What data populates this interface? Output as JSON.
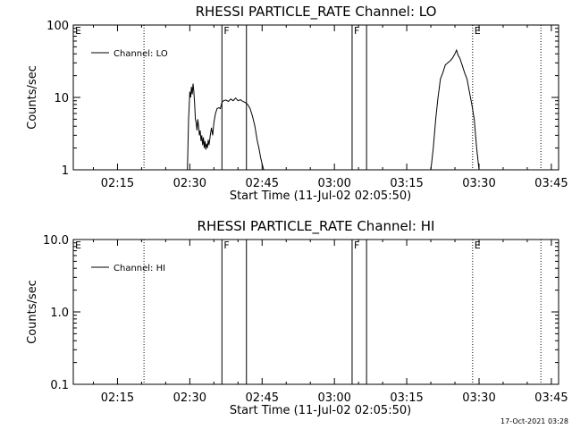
{
  "footer": {
    "timestamp": "17-Oct-2021 03:28"
  },
  "chart_data": [
    {
      "type": "line",
      "title": "RHESSI PARTICLE_RATE Channel: LO",
      "xlabel": "Start Time (11-Jul-02 02:05:50)",
      "ylabel": "Counts/sec",
      "yscale": "log",
      "ylim": [
        1,
        100
      ],
      "xlim": [
        "02:05:50",
        "03:46:30"
      ],
      "xticks": [
        "02:15",
        "02:30",
        "02:45",
        "03:00",
        "03:15",
        "03:30",
        "03:45"
      ],
      "yticks": [
        "1",
        "10",
        "100"
      ],
      "legend": {
        "entry": "Channel: LO",
        "placement": "top-left"
      },
      "markers": [
        {
          "label": "E",
          "time": "02:05:50",
          "style": "dotted"
        },
        {
          "label": "",
          "time": "02:20:30",
          "style": "dotted"
        },
        {
          "label": "F",
          "time": "02:36:40",
          "style": "solid"
        },
        {
          "label": "",
          "time": "02:41:45",
          "style": "solid"
        },
        {
          "label": "F",
          "time": "03:03:40",
          "style": "solid"
        },
        {
          "label": "",
          "time": "03:06:40",
          "style": "solid"
        },
        {
          "label": "E",
          "time": "03:28:40",
          "style": "dotted"
        },
        {
          "label": "",
          "time": "03:42:50",
          "style": "dotted"
        }
      ],
      "series": [
        {
          "segments": [
            {
              "x": [
                "02:29:30",
                "02:29:45",
                "02:30:00",
                "02:30:10",
                "02:30:20",
                "02:30:30",
                "02:30:40",
                "02:30:50",
                "02:31:00",
                "02:31:10",
                "02:31:20",
                "02:31:30",
                "02:31:40",
                "02:31:50",
                "02:32:00",
                "02:32:10",
                "02:32:20",
                "02:32:30",
                "02:32:40",
                "02:32:50",
                "02:33:00",
                "02:33:10",
                "02:33:20",
                "02:33:30",
                "02:33:40",
                "02:33:50",
                "02:34:00",
                "02:34:15",
                "02:34:30",
                "02:34:45",
                "02:35:00",
                "02:35:20",
                "02:35:40",
                "02:36:00",
                "02:36:20",
                "02:36:40",
                "02:37:00",
                "02:37:30",
                "02:38:00",
                "02:38:30",
                "02:39:00",
                "02:39:30",
                "02:40:00",
                "02:40:30",
                "02:41:00",
                "02:41:30",
                "02:42:00",
                "02:42:30",
                "02:43:00",
                "02:43:30",
                "02:44:00",
                "02:44:20",
                "02:44:40",
                "02:45:00",
                "02:45:20",
                "02:45:30"
              ],
              "y": [
                1.0,
                5.0,
                12.0,
                10.0,
                14.0,
                11.0,
                15.5,
                12.0,
                8.0,
                5.0,
                4.5,
                3.5,
                5.0,
                4.0,
                3.0,
                3.5,
                2.5,
                3.0,
                2.2,
                2.8,
                2.0,
                2.5,
                1.9,
                2.3,
                2.0,
                2.6,
                2.2,
                3.0,
                3.8,
                3.0,
                4.5,
                6.0,
                7.0,
                7.2,
                7.0,
                8.5,
                9.0,
                9.2,
                8.8,
                9.5,
                9.0,
                9.8,
                9.0,
                9.3,
                8.8,
                8.5,
                8.0,
                7.0,
                5.5,
                4.0,
                2.5,
                2.0,
                1.5,
                1.2,
                1.0,
                0.8
              ]
            },
            {
              "x": [
                "03:20:00",
                "03:20:30",
                "03:21:00",
                "03:21:30",
                "03:22:00",
                "03:22:30",
                "03:23:00",
                "03:23:30",
                "03:24:00",
                "03:24:30",
                "03:25:00",
                "03:25:20",
                "03:25:40",
                "03:26:00",
                "03:26:30",
                "03:27:00",
                "03:27:30",
                "03:28:00",
                "03:28:30",
                "03:29:00",
                "03:29:30",
                "03:30:00"
              ],
              "y": [
                1.0,
                2.0,
                5.0,
                10.0,
                18.0,
                22.0,
                28.0,
                30.0,
                32.0,
                35.0,
                40.0,
                45.0,
                38.0,
                35.0,
                28.0,
                22.0,
                18.0,
                12.0,
                8.0,
                5.0,
                2.0,
                1.0
              ]
            }
          ]
        }
      ]
    },
    {
      "type": "line",
      "title": "RHESSI PARTICLE_RATE Channel: HI",
      "xlabel": "Start Time (11-Jul-02 02:05:50)",
      "ylabel": "Counts/sec",
      "yscale": "log",
      "ylim": [
        0.1,
        10
      ],
      "xlim": [
        "02:05:50",
        "03:46:30"
      ],
      "xticks": [
        "02:15",
        "02:30",
        "02:45",
        "03:00",
        "03:15",
        "03:30",
        "03:45"
      ],
      "yticks": [
        "0.1",
        "1.0",
        "10.0"
      ],
      "legend": {
        "entry": "Channel: HI",
        "placement": "top-left"
      },
      "markers": [
        {
          "label": "E",
          "time": "02:05:50",
          "style": "dotted"
        },
        {
          "label": "",
          "time": "02:20:30",
          "style": "dotted"
        },
        {
          "label": "F",
          "time": "02:36:40",
          "style": "solid"
        },
        {
          "label": "",
          "time": "02:41:45",
          "style": "solid"
        },
        {
          "label": "F",
          "time": "03:03:40",
          "style": "solid"
        },
        {
          "label": "",
          "time": "03:06:40",
          "style": "solid"
        },
        {
          "label": "E",
          "time": "03:28:40",
          "style": "dotted"
        },
        {
          "label": "",
          "time": "03:42:50",
          "style": "dotted"
        }
      ],
      "series": []
    }
  ]
}
